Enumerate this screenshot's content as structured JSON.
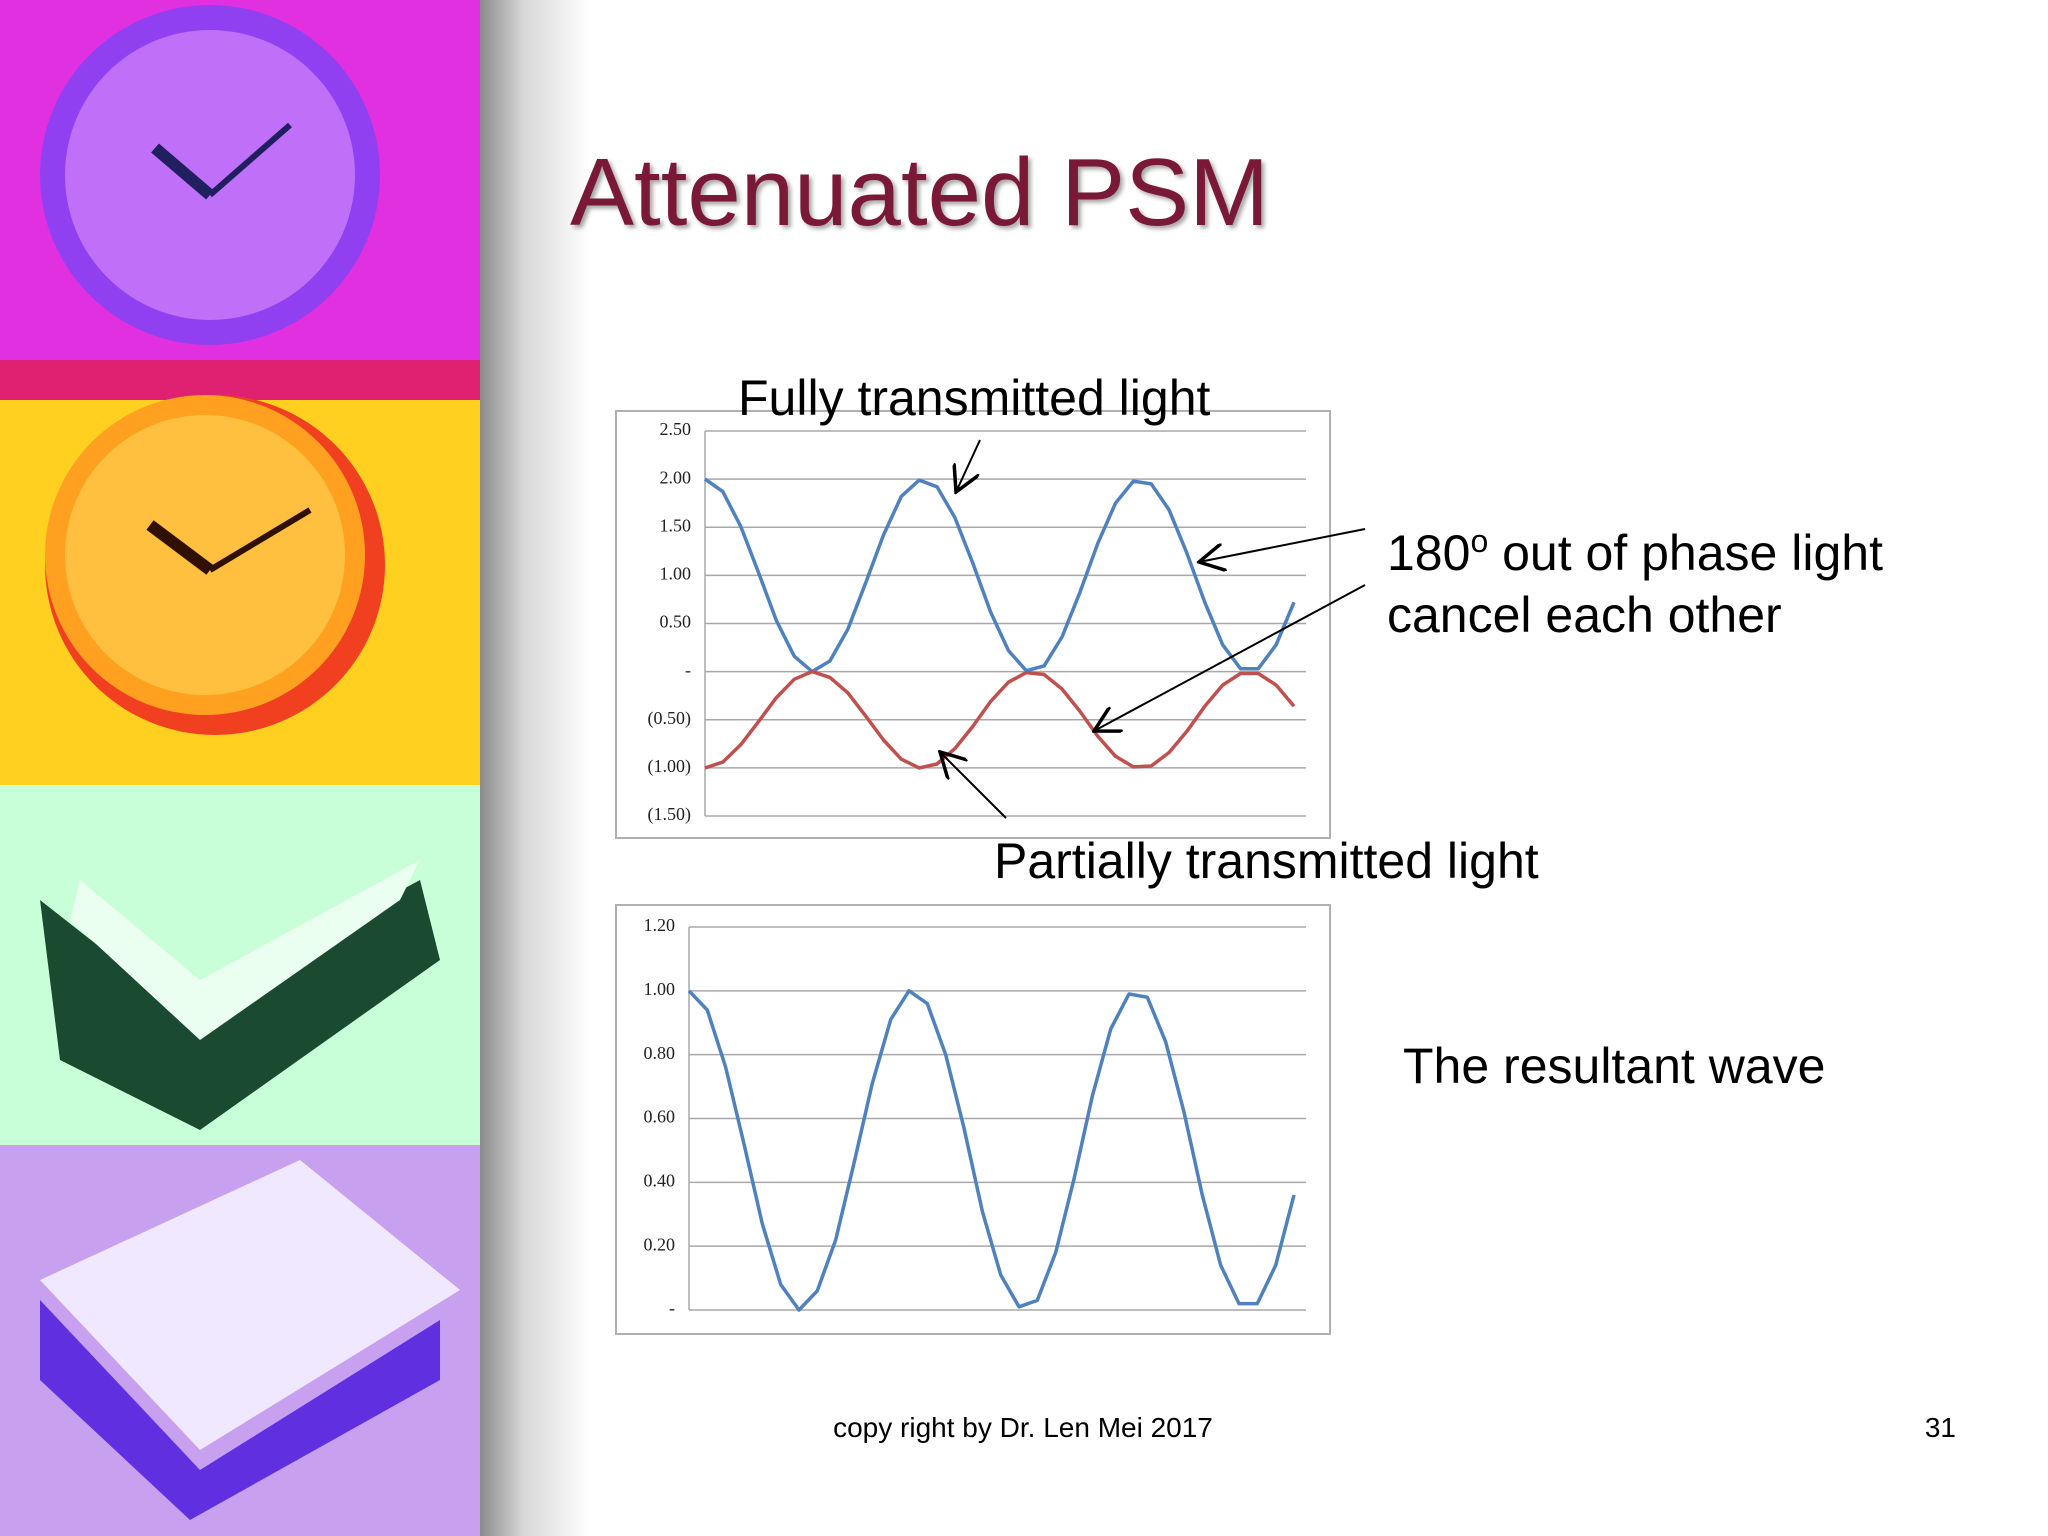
{
  "title": "Attenuated PSM",
  "annotations": {
    "fully": "Fully transmitted light",
    "phase_number": "180",
    "phase_sup": "o",
    "phase_rest": " out of phase light",
    "cancel": "cancel each other",
    "partially": "Partially transmitted light",
    "resultant": "The resultant wave"
  },
  "footer": "copy right by Dr. Len Mei 2017",
  "page_number": "31",
  "chart_data": [
    {
      "type": "line",
      "ylim": [
        -1.5,
        2.5
      ],
      "yticks": [
        {
          "value": 2.5,
          "label": "2.50"
        },
        {
          "value": 2.0,
          "label": "2.00"
        },
        {
          "value": 1.5,
          "label": "1.50"
        },
        {
          "value": 1.0,
          "label": "1.00"
        },
        {
          "value": 0.5,
          "label": "0.50"
        },
        {
          "value": 0,
          "label": "-"
        },
        {
          "value": -0.5,
          "label": "(0.50)"
        },
        {
          "value": -1.0,
          "label": "(1.00)"
        },
        {
          "value": -1.5,
          "label": "(1.50)"
        }
      ],
      "grid": true,
      "series": [
        {
          "color": "#4f81bd",
          "values": [
            2.0,
            1.87,
            1.51,
            1.03,
            0.53,
            0.16,
            0.0,
            0.11,
            0.44,
            0.92,
            1.42,
            1.82,
            1.99,
            1.92,
            1.6,
            1.13,
            0.62,
            0.22,
            0.01,
            0.06,
            0.36,
            0.82,
            1.33,
            1.75,
            1.98,
            1.95,
            1.68,
            1.23,
            0.72,
            0.28,
            0.03,
            0.03,
            0.28,
            0.72
          ]
        },
        {
          "color": "#c0504d",
          "values": [
            -1.0,
            -0.94,
            -0.76,
            -0.52,
            -0.27,
            -0.08,
            0.0,
            -0.06,
            -0.22,
            -0.46,
            -0.71,
            -0.91,
            -1.0,
            -0.96,
            -0.8,
            -0.57,
            -0.31,
            -0.11,
            -0.01,
            -0.03,
            -0.18,
            -0.41,
            -0.67,
            -0.88,
            -0.99,
            -0.98,
            -0.84,
            -0.62,
            -0.36,
            -0.14,
            -0.02,
            -0.02,
            -0.14,
            -0.36
          ]
        }
      ]
    },
    {
      "type": "line",
      "ylim": [
        0,
        1.2
      ],
      "yticks": [
        {
          "value": 1.2,
          "label": "1.20"
        },
        {
          "value": 1.0,
          "label": "1.00"
        },
        {
          "value": 0.8,
          "label": "0.80"
        },
        {
          "value": 0.6,
          "label": "0.60"
        },
        {
          "value": 0.4,
          "label": "0.40"
        },
        {
          "value": 0.2,
          "label": "0.20"
        },
        {
          "value": 0,
          "label": "-"
        }
      ],
      "grid": true,
      "series": [
        {
          "color": "#4f81bd",
          "values": [
            1.0,
            0.94,
            0.76,
            0.52,
            0.27,
            0.08,
            0.0,
            0.06,
            0.22,
            0.46,
            0.71,
            0.91,
            1.0,
            0.96,
            0.8,
            0.57,
            0.31,
            0.11,
            0.01,
            0.03,
            0.18,
            0.41,
            0.67,
            0.88,
            0.99,
            0.98,
            0.84,
            0.62,
            0.36,
            0.14,
            0.02,
            0.02,
            0.14,
            0.36
          ]
        }
      ]
    }
  ]
}
